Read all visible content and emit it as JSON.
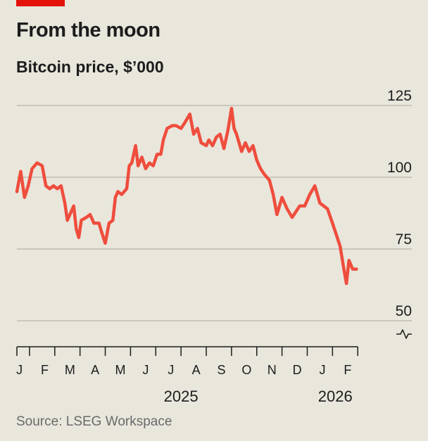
{
  "colors": {
    "accent": "#e3120b",
    "line": "#ef4d3d",
    "grid": "#b9b6ad",
    "axis": "#1c1c1c"
  },
  "source": "Source: LSEG Workspace",
  "chart_data": {
    "type": "line",
    "title": "From the moon",
    "subtitle": "Bitcoin price, $’000",
    "ylabel": "$'000",
    "ylim": [
      50,
      125
    ],
    "yticks": [
      {
        "value": 125,
        "label": "125"
      },
      {
        "value": 100,
        "label": "100"
      },
      {
        "value": 75,
        "label": "75"
      },
      {
        "value": 50,
        "label": "50"
      }
    ],
    "axis_break": true,
    "grid": true,
    "x_months": [
      "J",
      "F",
      "M",
      "A",
      "M",
      "J",
      "J",
      "A",
      "S",
      "O",
      "N",
      "D",
      "J",
      "F"
    ],
    "x_years": [
      {
        "label": "2025",
        "month_index": 6.5
      },
      {
        "label": "2026",
        "month_index": 13.0
      }
    ],
    "series": [
      {
        "name": "Bitcoin price",
        "x": [
          0.0,
          0.15,
          0.3,
          0.45,
          0.6,
          0.8,
          1.0,
          1.15,
          1.3,
          1.45,
          1.6,
          1.75,
          1.9,
          2.0,
          2.1,
          2.25,
          2.35,
          2.45,
          2.55,
          2.75,
          2.9,
          3.05,
          3.25,
          3.35,
          3.5,
          3.65,
          3.8,
          3.9,
          4.0,
          4.15,
          4.35,
          4.45,
          4.55,
          4.7,
          4.8,
          4.95,
          5.1,
          5.25,
          5.4,
          5.55,
          5.7,
          5.8,
          5.95,
          6.15,
          6.3,
          6.5,
          6.65,
          6.85,
          7.0,
          7.15,
          7.3,
          7.5,
          7.6,
          7.75,
          7.9,
          8.05,
          8.2,
          8.35,
          8.5,
          8.6,
          8.7,
          8.9,
          9.05,
          9.2,
          9.35,
          9.5,
          9.65,
          9.8,
          10.0,
          10.15,
          10.3,
          10.5,
          10.7,
          10.9,
          11.05,
          11.2,
          11.4,
          11.6,
          11.8,
          12.0,
          12.15,
          12.3,
          12.5,
          12.65,
          12.8,
          12.95,
          13.05,
          13.15,
          13.3,
          13.45
        ],
        "values": [
          95,
          102,
          93,
          97,
          103,
          105,
          104,
          97,
          96,
          97,
          96,
          97,
          91,
          85,
          87,
          90,
          82,
          79,
          85,
          86,
          87,
          84,
          84,
          81,
          77,
          84,
          85,
          93,
          95,
          94,
          96,
          104,
          105,
          111,
          104,
          107,
          103,
          105,
          104,
          108,
          108,
          113,
          117,
          118,
          118,
          117,
          119,
          122,
          115,
          117,
          112,
          111,
          113,
          111,
          114,
          115,
          110,
          116,
          124,
          117,
          115,
          109,
          112,
          109,
          111,
          106,
          103,
          101,
          99,
          94,
          87,
          93,
          89,
          86,
          88,
          90,
          90,
          94,
          97,
          91,
          90,
          89,
          84,
          80,
          76,
          68,
          63,
          71,
          68,
          68
        ]
      }
    ]
  }
}
